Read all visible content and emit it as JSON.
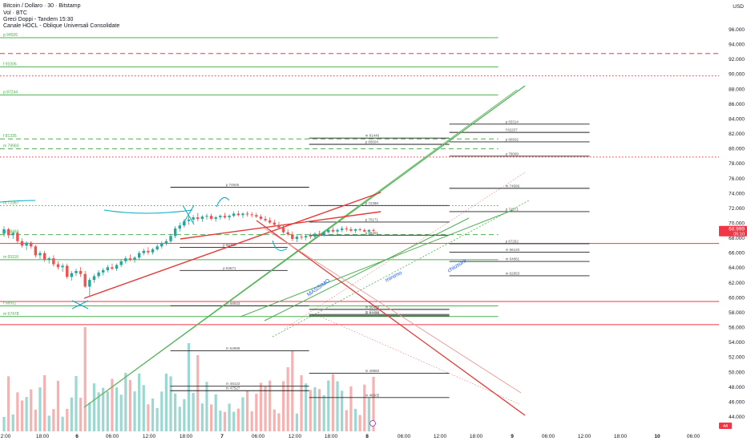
{
  "header": {
    "title": "Bitcoin / Dollaro · 30 · Bitstamp",
    "vol": "Vol · BTC",
    "ind1": "Greci Doppi - Tandem 15:30",
    "ind2": "Canale HOCL - Oblique Universali Consolidate"
  },
  "chart_data": {
    "type": "candlestick",
    "currency": "USD",
    "price_axis": {
      "range": [
        43000,
        97500
      ],
      "ticks": [
        "96.000",
        "94.000",
        "92.000",
        "90.000",
        "88.000",
        "86.000",
        "84.000",
        "82.000",
        "80.000",
        "78.000",
        "76.000",
        "74.000",
        "72.000",
        "70.000",
        "68.000",
        "66.000",
        "64.000",
        "62.000",
        "60.000",
        "58.000",
        "56.000",
        "54.000",
        "52.000",
        "50.000",
        "48.000",
        "46.000",
        "44.000"
      ]
    },
    "time_axis": {
      "ticks": [
        "2:00",
        "18:00",
        "6",
        "06:00",
        "12:00",
        "18:00",
        "7",
        "06:00",
        "12:00",
        "18:00",
        "8",
        "06:00",
        "12:00",
        "18:00",
        "9",
        "06:00",
        "12:00",
        "18:00",
        "10",
        "06:00"
      ]
    },
    "last_price": {
      "value": "68.999",
      "timer": "05:10"
    },
    "volume_last": "44",
    "horizontal_levels": [
      {
        "label": "p 94926",
        "value": 94926,
        "color": "#4caf50",
        "style": "solid",
        "x_end": 0.693
      },
      {
        "label": "",
        "value": 92800,
        "color": "#f23645",
        "style": "dashed",
        "x_end": 1.0
      },
      {
        "label": "f 91006",
        "value": 91006,
        "color": "#4caf50",
        "style": "solid",
        "x_end": 0.693
      },
      {
        "label": "",
        "value": 89800,
        "color": "#f23645",
        "style": "dotted",
        "x_end": 1.0
      },
      {
        "label": "p 87244",
        "value": 87244,
        "color": "#4caf50",
        "style": "solid",
        "x_end": 0.693
      },
      {
        "label": "f 81335",
        "value": 81335,
        "color": "#4caf50",
        "style": "dashed",
        "x_end": 0.693
      },
      {
        "label": "m 79993",
        "value": 79993,
        "color": "#4caf50",
        "style": "dashed",
        "x_end": 0.693
      },
      {
        "label": "",
        "value": 78900,
        "color": "#f23645",
        "style": "dotted",
        "x_end": 1.0
      },
      {
        "label": "m 72367",
        "value": 72367,
        "color": "#4caf50",
        "style": "dotted",
        "x_end": 0.693
      },
      {
        "label": "m 68483",
        "value": 68483,
        "color": "#4caf50",
        "style": "dashed",
        "x_end": 0.693
      },
      {
        "label": "",
        "value": 67300,
        "color": "#f23645",
        "style": "solid",
        "x_end": 1.0
      },
      {
        "label": "m 65110",
        "value": 65110,
        "color": "#4caf50",
        "style": "solid",
        "x_end": 0.693
      },
      {
        "label": "",
        "value": 59500,
        "color": "#f23645",
        "style": "solid",
        "x_end": 1.0
      },
      {
        "label": "f 58911",
        "value": 58911,
        "color": "#4caf50",
        "style": "solid",
        "x_end": 0.693
      },
      {
        "label": "m 57478",
        "value": 57478,
        "color": "#4caf50",
        "style": "solid",
        "x_end": 0.693
      },
      {
        "label": "",
        "value": 56400,
        "color": "#f23645",
        "style": "solid",
        "x_end": 1.0
      }
    ],
    "level_segments": [
      {
        "label": "p 74846",
        "value": 74846,
        "x0": 0.237,
        "x1": 0.43
      },
      {
        "label": "p 66768",
        "value": 66768,
        "x0": 0.25,
        "x1": 0.4
      },
      {
        "label": "p 63671",
        "value": 63671,
        "x0": 0.25,
        "x1": 0.4
      },
      {
        "label": "m 58933",
        "value": 58933,
        "x0": 0.237,
        "x1": 0.43
      },
      {
        "label": "m 52888",
        "value": 52888,
        "x0": 0.237,
        "x1": 0.43
      },
      {
        "label": "m 48122",
        "value": 48122,
        "x0": 0.237,
        "x1": 0.43
      },
      {
        "label": "m 47527",
        "value": 47527,
        "x0": 0.237,
        "x1": 0.43
      },
      {
        "label": "m 81446",
        "value": 81446,
        "x0": 0.43,
        "x1": 0.625
      },
      {
        "label": "p 80604",
        "value": 80604,
        "x0": 0.43,
        "x1": 0.625
      },
      {
        "label": "p 72388",
        "value": 72388,
        "x0": 0.43,
        "x1": 0.625
      },
      {
        "label": "p 70171",
        "value": 70171,
        "x0": 0.43,
        "x1": 0.625
      },
      {
        "label": "p 68401",
        "value": 68401,
        "x0": 0.43,
        "x1": 0.625
      },
      {
        "label": "m 58439",
        "value": 58439,
        "x0": 0.43,
        "x1": 0.625
      },
      {
        "label": "m 57760",
        "value": 57760,
        "x0": 0.43,
        "x1": 0.625
      },
      {
        "label": "m 57580",
        "value": 57580,
        "x0": 0.43,
        "x1": 0.625
      },
      {
        "label": "m 49860",
        "value": 49860,
        "x0": 0.43,
        "x1": 0.625
      },
      {
        "label": "m 46605",
        "value": 46605,
        "x0": 0.43,
        "x1": 0.625
      },
      {
        "label": "p 83314",
        "value": 83314,
        "x0": 0.625,
        "x1": 0.82
      },
      {
        "label": "f 82207",
        "value": 82207,
        "x0": 0.625,
        "x1": 0.82
      },
      {
        "label": "p 80932",
        "value": 80932,
        "x0": 0.625,
        "x1": 0.82
      },
      {
        "label": "p 79009",
        "value": 79009,
        "x0": 0.625,
        "x1": 0.82
      },
      {
        "label": "m 74696",
        "value": 74696,
        "x0": 0.625,
        "x1": 0.82
      },
      {
        "label": "p 71571",
        "value": 71571,
        "x0": 0.625,
        "x1": 0.82
      },
      {
        "label": "p 67262",
        "value": 67262,
        "x0": 0.625,
        "x1": 0.82
      },
      {
        "label": "m 66120",
        "value": 66120,
        "x0": 0.625,
        "x1": 0.82
      },
      {
        "label": "m 64881",
        "value": 64881,
        "x0": 0.625,
        "x1": 0.82
      },
      {
        "label": "m 62953",
        "value": 62953,
        "x0": 0.625,
        "x1": 0.82
      }
    ],
    "annotations": [
      {
        "text": "MASSIMO",
        "color": "#2962ff"
      },
      {
        "text": "minimo",
        "color": "#2962ff"
      },
      {
        "text": "chiusura",
        "color": "#2962ff"
      }
    ],
    "candles": [
      [
        68.6,
        69.6,
        68.2,
        69.2
      ],
      [
        69.2,
        69.4,
        68.0,
        68.4
      ],
      [
        68.4,
        68.9,
        67.9,
        68.7
      ],
      [
        68.7,
        68.9,
        67.3,
        67.6
      ],
      [
        67.6,
        68.0,
        66.7,
        67.0
      ],
      [
        67.0,
        67.6,
        66.4,
        67.4
      ],
      [
        67.4,
        67.6,
        66.6,
        66.9
      ],
      [
        66.9,
        67.1,
        65.4,
        65.7
      ],
      [
        65.7,
        66.3,
        65.2,
        66.0
      ],
      [
        66.0,
        66.3,
        64.8,
        65.1
      ],
      [
        65.1,
        65.5,
        64.6,
        65.3
      ],
      [
        65.3,
        65.7,
        64.2,
        64.5
      ],
      [
        64.5,
        64.9,
        63.8,
        64.1
      ],
      [
        64.1,
        64.6,
        63.5,
        64.3
      ],
      [
        64.3,
        64.6,
        62.5,
        62.8
      ],
      [
        62.8,
        63.6,
        62.3,
        63.3
      ],
      [
        63.3,
        63.9,
        62.9,
        63.6
      ],
      [
        63.6,
        64.1,
        62.8,
        63.2
      ],
      [
        63.2,
        63.6,
        61.3,
        61.5
      ],
      [
        61.5,
        62.7,
        60.2,
        62.4
      ],
      [
        62.4,
        63.2,
        62.0,
        62.9
      ],
      [
        62.9,
        63.7,
        62.6,
        63.4
      ],
      [
        63.4,
        64.0,
        63.0,
        63.7
      ],
      [
        63.7,
        64.4,
        63.4,
        64.1
      ],
      [
        64.1,
        64.6,
        63.7,
        63.9
      ],
      [
        63.9,
        64.6,
        63.6,
        64.4
      ],
      [
        64.4,
        65.2,
        64.1,
        64.9
      ],
      [
        64.9,
        65.6,
        64.6,
        65.3
      ],
      [
        65.3,
        65.8,
        64.9,
        65.1
      ],
      [
        65.1,
        65.6,
        64.7,
        65.4
      ],
      [
        65.4,
        66.3,
        65.1,
        66.0
      ],
      [
        66.0,
        66.6,
        65.7,
        66.3
      ],
      [
        66.3,
        66.8,
        65.8,
        66.1
      ],
      [
        66.1,
        66.7,
        65.8,
        66.5
      ],
      [
        66.5,
        67.2,
        66.3,
        66.9
      ],
      [
        66.9,
        67.6,
        66.6,
        67.3
      ],
      [
        67.3,
        67.9,
        67.0,
        67.6
      ],
      [
        67.6,
        68.6,
        67.3,
        68.3
      ],
      [
        68.3,
        69.6,
        68.0,
        69.3
      ],
      [
        69.3,
        70.1,
        68.9,
        69.7
      ],
      [
        69.7,
        70.6,
        69.4,
        70.3
      ],
      [
        70.3,
        70.9,
        69.8,
        70.5
      ],
      [
        70.5,
        71.1,
        70.1,
        70.8
      ],
      [
        70.8,
        71.4,
        70.3,
        70.6
      ],
      [
        70.6,
        71.1,
        70.2,
        70.9
      ],
      [
        70.9,
        71.3,
        70.5,
        71.0
      ],
      [
        71.0,
        71.3,
        70.4,
        70.6
      ],
      [
        70.6,
        71.0,
        70.2,
        70.8
      ],
      [
        70.8,
        71.2,
        70.5,
        71.0
      ],
      [
        71.0,
        71.4,
        70.6,
        70.8
      ],
      [
        70.8,
        71.2,
        70.4,
        71.0
      ],
      [
        71.0,
        71.6,
        70.8,
        71.3
      ],
      [
        71.3,
        71.7,
        70.9,
        71.1
      ],
      [
        71.1,
        71.5,
        70.7,
        71.3
      ],
      [
        71.3,
        71.6,
        70.9,
        71.2
      ],
      [
        71.2,
        71.5,
        70.8,
        71.1
      ],
      [
        71.1,
        71.4,
        70.7,
        70.9
      ],
      [
        70.9,
        71.2,
        70.4,
        70.6
      ],
      [
        70.6,
        71.0,
        70.2,
        70.4
      ],
      [
        70.4,
        70.8,
        69.9,
        70.1
      ],
      [
        70.1,
        70.5,
        69.6,
        69.8
      ],
      [
        69.8,
        70.2,
        69.2,
        69.4
      ],
      [
        69.4,
        69.8,
        68.6,
        68.8
      ],
      [
        68.8,
        69.2,
        68.3,
        68.5
      ],
      [
        68.5,
        68.9,
        67.6,
        67.9
      ],
      [
        67.9,
        68.4,
        67.5,
        68.2
      ],
      [
        68.2,
        68.6,
        67.8,
        68.1
      ],
      [
        68.1,
        68.5,
        67.7,
        68.3
      ],
      [
        68.3,
        68.7,
        67.9,
        68.2
      ],
      [
        68.2,
        68.8,
        68.0,
        68.6
      ],
      [
        68.6,
        69.0,
        68.2,
        68.4
      ],
      [
        68.4,
        69.0,
        68.2,
        68.8
      ],
      [
        68.8,
        69.4,
        68.6,
        69.1
      ],
      [
        69.1,
        69.5,
        68.7,
        68.9
      ],
      [
        68.9,
        69.3,
        68.5,
        69.1
      ],
      [
        69.1,
        69.6,
        68.8,
        69.3
      ],
      [
        69.3,
        69.6,
        68.9,
        69.2
      ],
      [
        69.2,
        69.5,
        68.8,
        69.0
      ],
      [
        69.0,
        69.3,
        68.7,
        69.2
      ],
      [
        69.2,
        69.4,
        68.9,
        69.1
      ],
      [
        69.1,
        69.3,
        68.8,
        68.9
      ],
      [
        68.9,
        69.2,
        68.7,
        69.1
      ],
      [
        69.1,
        69.3,
        68.8,
        69.0
      ]
    ]
  }
}
